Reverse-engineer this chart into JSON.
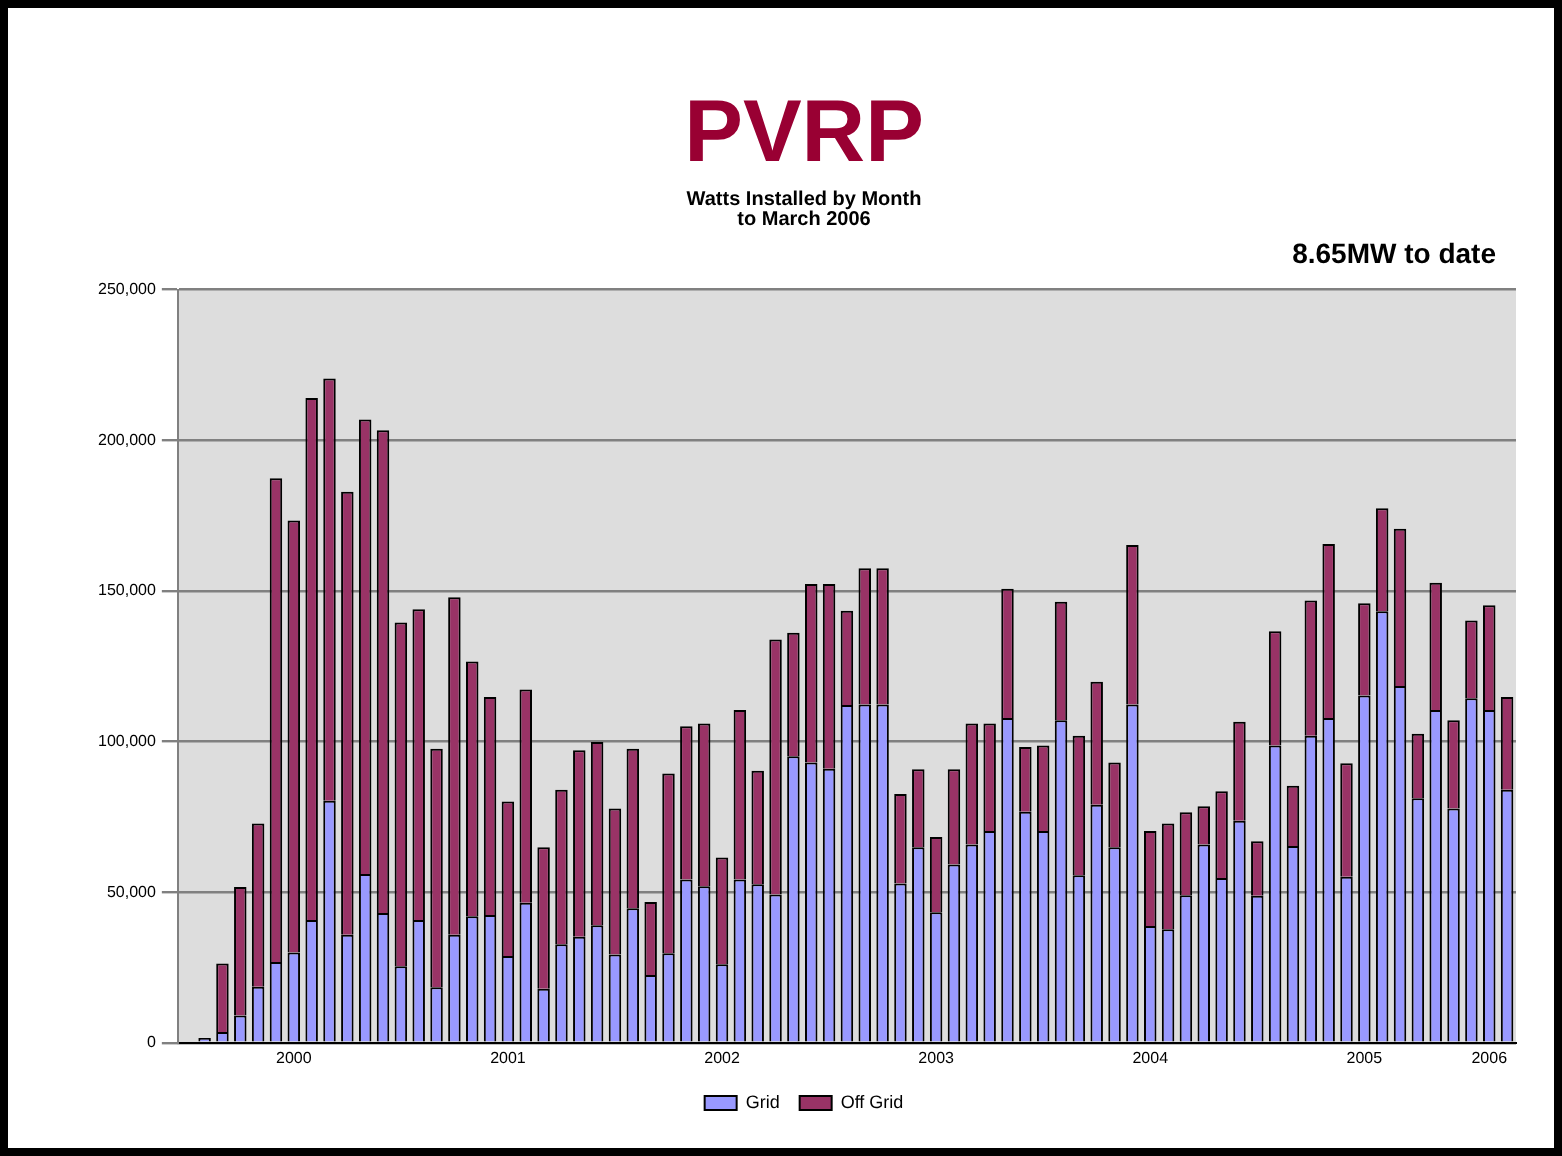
{
  "chart_data": {
    "type": "bar",
    "title": "PVRP",
    "subtitle": "Watts Installed by Month\nto March 2006",
    "annotations": [
      "8.65MW to date"
    ],
    "categories": [
      null,
      null,
      null,
      null,
      null,
      null,
      "2000",
      null,
      null,
      null,
      null,
      null,
      null,
      null,
      null,
      null,
      null,
      null,
      "2001",
      null,
      null,
      null,
      null,
      null,
      null,
      null,
      null,
      null,
      null,
      null,
      "2002",
      null,
      null,
      null,
      null,
      null,
      null,
      null,
      null,
      null,
      null,
      null,
      "2003",
      null,
      null,
      null,
      null,
      null,
      null,
      null,
      null,
      null,
      null,
      null,
      "2004",
      null,
      null,
      null,
      null,
      null,
      null,
      null,
      null,
      null,
      null,
      null,
      "2005",
      null,
      null,
      null,
      null,
      null,
      null,
      "2006",
      null
    ],
    "stacked": true,
    "series": [
      {
        "name": "Grid",
        "color": "#9999ff",
        "values": [
          0,
          1600,
          3600,
          9100,
          18600,
          26800,
          30000,
          40800,
          80300,
          35900,
          56000,
          43100,
          25400,
          40800,
          18400,
          35900,
          42000,
          42400,
          28800,
          46500,
          17900,
          32700,
          35200,
          39000,
          29300,
          44700,
          22500,
          29700,
          54200,
          52000,
          26100,
          54200,
          52600,
          49200,
          95100,
          93000,
          91000,
          112100,
          112300,
          112300,
          52900,
          64900,
          43300,
          59200,
          65800,
          70300,
          107800,
          76700,
          70300,
          107100,
          55600,
          79000,
          64900,
          112300,
          38800,
          37700,
          49000,
          65800,
          54700,
          73700,
          48800,
          98700,
          65300,
          101900,
          107800,
          55100,
          115300,
          143200,
          118400,
          81200,
          110500,
          77800,
          114400,
          110500,
          84000
        ]
      },
      {
        "name": "Off Grid",
        "color": "#993366",
        "values": [
          0,
          0,
          22700,
          42600,
          54200,
          160600,
          143400,
          173200,
          140200,
          147000,
          150900,
          160200,
          114100,
          103100,
          79200,
          112000,
          84600,
          72400,
          51300,
          70800,
          47000,
          51300,
          61900,
          60800,
          48500,
          52900,
          24200,
          59700,
          50900,
          54000,
          35400,
          56300,
          37700,
          84700,
          41000,
          59300,
          61300,
          31300,
          45200,
          45200,
          29700,
          25900,
          25000,
          31600,
          40200,
          35700,
          42900,
          21500,
          28400,
          39300,
          46300,
          40800,
          28100,
          52900,
          31500,
          35100,
          27500,
          12700,
          28800,
          32900,
          18100,
          37900,
          20000,
          44900,
          57800,
          37700,
          30600,
          34200,
          52200,
          21400,
          42200,
          29300,
          25800,
          34700,
          30800
        ]
      }
    ],
    "ylim": [
      0,
      250000
    ],
    "yticks": [
      {
        "value": 0,
        "label": "0"
      },
      {
        "value": 50000,
        "label": "50,000"
      },
      {
        "value": 100000,
        "label": "100,000"
      },
      {
        "value": 150000,
        "label": "150,000"
      },
      {
        "value": 200000,
        "label": "200,000"
      },
      {
        "value": 250000,
        "label": "250,000"
      }
    ],
    "grid": "y",
    "legend": "bottom"
  }
}
